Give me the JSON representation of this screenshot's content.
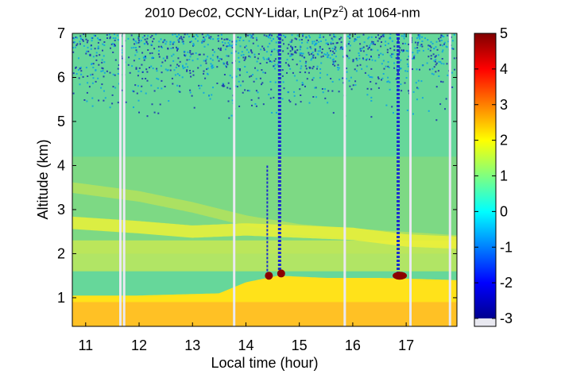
{
  "chart_data": {
    "type": "heatmap",
    "title": "2010 Dec02, CCNY-Lidar, Ln(Pz",
    "title_sup": "2",
    "title_tail": ") at 1064-nm",
    "xlabel": "Local time (hour)",
    "ylabel": "Altitude (km)",
    "xlim": [
      10.75,
      17.95
    ],
    "ylim": [
      0.35,
      7.0
    ],
    "xticks": [
      "11",
      "12",
      "13",
      "14",
      "15",
      "16",
      "17"
    ],
    "yticks": [
      "1",
      "2",
      "3",
      "4",
      "5",
      "6",
      "7"
    ],
    "colorbar": {
      "ticks": [
        "5",
        "4",
        "3",
        "2",
        "1",
        "0",
        "-1",
        "-2",
        "-3"
      ],
      "range": [
        -3,
        5
      ],
      "colormap": "jet"
    },
    "boundary_layer_top_km": [
      {
        "t": 10.75,
        "z": 1.05
      },
      {
        "t": 12.0,
        "z": 1.05
      },
      {
        "t": 13.5,
        "z": 1.1
      },
      {
        "t": 14.0,
        "z": 1.35
      },
      {
        "t": 14.6,
        "z": 1.5
      },
      {
        "t": 15.5,
        "z": 1.45
      },
      {
        "t": 16.5,
        "z": 1.45
      },
      {
        "t": 17.95,
        "z": 1.4
      }
    ],
    "residual_layer_km": [
      {
        "t": 10.75,
        "z": 2.7
      },
      {
        "t": 12.0,
        "z": 2.6
      },
      {
        "t": 13.0,
        "z": 2.5
      },
      {
        "t": 14.0,
        "z": 2.55
      },
      {
        "t": 15.0,
        "z": 2.5
      },
      {
        "t": 16.0,
        "z": 2.45
      },
      {
        "t": 17.0,
        "z": 2.3
      },
      {
        "t": 17.95,
        "z": 2.25
      }
    ],
    "aerosol_plume_km": [
      {
        "t": 10.75,
        "z": 3.5
      },
      {
        "t": 12.0,
        "z": 3.3
      },
      {
        "t": 13.0,
        "z": 3.05
      },
      {
        "t": 14.0,
        "z": 2.75
      },
      {
        "t": 15.0,
        "z": 2.55
      },
      {
        "t": 16.0,
        "z": 2.45
      },
      {
        "t": 17.95,
        "z": 2.3
      }
    ],
    "cloud_events": [
      {
        "t": 14.4,
        "base_km": 1.5,
        "top_km": 4.0
      },
      {
        "t": 14.63,
        "base_km": 1.55,
        "top_km": 7.0
      },
      {
        "t": 16.85,
        "base_km": 1.5,
        "top_km": 7.0
      }
    ],
    "data_gaps_hours": [
      11.65,
      11.72,
      13.78,
      15.85,
      17.08,
      17.82
    ]
  }
}
